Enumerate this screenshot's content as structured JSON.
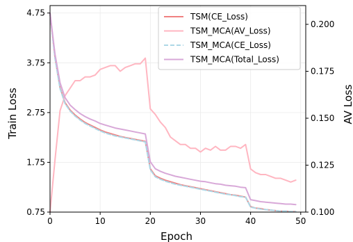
{
  "chart_data": {
    "type": "line",
    "xlabel": "Epoch",
    "ylabel": "Train Loss",
    "ylabel_right": "AV Loss",
    "xlim": [
      0,
      51
    ],
    "ylim": [
      0.75,
      4.9
    ],
    "ylim_right": [
      0.1,
      0.21
    ],
    "xticks": [
      0,
      10,
      20,
      30,
      40,
      50
    ],
    "yticks": [
      0.75,
      1.75,
      2.75,
      3.75,
      4.75
    ],
    "ytick_labels": [
      "0.75",
      "1.75",
      "2.75",
      "3.75",
      "4.75"
    ],
    "yticks_right": [
      0.1,
      0.125,
      0.15,
      0.175,
      0.2
    ],
    "ytick_labels_right": [
      "0.100",
      "0.125",
      "0.150",
      "0.175",
      "0.200"
    ],
    "grid": true,
    "legend_position": "top-right",
    "x": [
      0,
      1,
      2,
      3,
      4,
      5,
      6,
      7,
      8,
      9,
      10,
      11,
      12,
      13,
      14,
      15,
      16,
      17,
      18,
      19,
      20,
      21,
      22,
      23,
      24,
      25,
      26,
      27,
      28,
      29,
      30,
      31,
      32,
      33,
      34,
      35,
      36,
      37,
      38,
      39,
      40,
      41,
      42,
      43,
      44,
      45,
      46,
      47,
      48,
      49
    ],
    "series": [
      {
        "name": "TSM(CE_Loss)",
        "axis": "left",
        "color": "#f08080",
        "dashed": false,
        "values": [
          4.74,
          3.85,
          3.25,
          2.95,
          2.8,
          2.7,
          2.62,
          2.55,
          2.5,
          2.45,
          2.4,
          2.36,
          2.33,
          2.3,
          2.27,
          2.25,
          2.23,
          2.21,
          2.19,
          2.17,
          1.62,
          1.48,
          1.43,
          1.39,
          1.36,
          1.33,
          1.3,
          1.28,
          1.26,
          1.24,
          1.22,
          1.2,
          1.18,
          1.16,
          1.14,
          1.12,
          1.1,
          1.09,
          1.07,
          1.05,
          0.86,
          0.83,
          0.82,
          0.8,
          0.79,
          0.78,
          0.77,
          0.77,
          0.76,
          0.76
        ]
      },
      {
        "name": "TSM_MCA(AV_Loss)",
        "axis": "right",
        "color": "#ffb6c1",
        "dashed": false,
        "values": [
          0.1,
          0.128,
          0.154,
          0.162,
          0.166,
          0.17,
          0.17,
          0.172,
          0.172,
          0.173,
          0.176,
          0.177,
          0.178,
          0.178,
          0.175,
          0.177,
          0.178,
          0.179,
          0.179,
          0.182,
          0.155,
          0.152,
          0.148,
          0.145,
          0.14,
          0.138,
          0.136,
          0.136,
          0.134,
          0.134,
          0.132,
          0.134,
          0.133,
          0.135,
          0.133,
          0.133,
          0.135,
          0.135,
          0.134,
          0.136,
          0.123,
          0.121,
          0.12,
          0.12,
          0.119,
          0.118,
          0.118,
          0.117,
          0.116,
          0.117
        ]
      },
      {
        "name": "TSM_MCA(CE_Loss)",
        "axis": "left",
        "color": "#add8e6",
        "dashed": true,
        "values": [
          4.74,
          3.84,
          3.23,
          2.93,
          2.78,
          2.68,
          2.6,
          2.53,
          2.48,
          2.43,
          2.38,
          2.34,
          2.31,
          2.28,
          2.26,
          2.24,
          2.22,
          2.2,
          2.18,
          2.16,
          1.6,
          1.46,
          1.41,
          1.37,
          1.34,
          1.31,
          1.29,
          1.27,
          1.25,
          1.23,
          1.21,
          1.19,
          1.17,
          1.15,
          1.13,
          1.11,
          1.1,
          1.08,
          1.06,
          1.05,
          0.85,
          0.83,
          0.81,
          0.8,
          0.79,
          0.78,
          0.77,
          0.77,
          0.76,
          0.76
        ]
      },
      {
        "name": "TSM_MCA(Total_Loss)",
        "axis": "left",
        "color": "#d8a8d8",
        "dashed": false,
        "values": [
          4.75,
          3.92,
          3.35,
          3.05,
          2.9,
          2.81,
          2.73,
          2.67,
          2.62,
          2.58,
          2.53,
          2.5,
          2.47,
          2.44,
          2.42,
          2.4,
          2.38,
          2.36,
          2.34,
          2.32,
          1.76,
          1.62,
          1.57,
          1.53,
          1.5,
          1.47,
          1.45,
          1.43,
          1.41,
          1.39,
          1.37,
          1.36,
          1.34,
          1.32,
          1.31,
          1.29,
          1.28,
          1.27,
          1.25,
          1.24,
          1.0,
          0.98,
          0.96,
          0.95,
          0.94,
          0.93,
          0.92,
          0.91,
          0.91,
          0.9
        ]
      }
    ]
  }
}
